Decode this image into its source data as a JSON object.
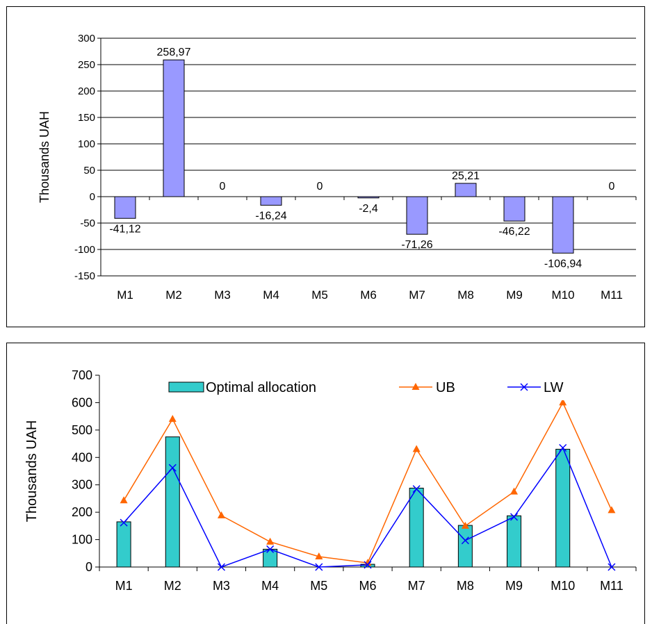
{
  "colors": {
    "bar_fill": "#9999ff",
    "bar_fill_teal": "#33cccc",
    "ub_line": "#ff6600",
    "lw_line": "#0000ff",
    "frame": "#000000"
  },
  "chart_data": [
    {
      "type": "bar",
      "categories": [
        "M1",
        "M2",
        "M3",
        "M4",
        "M5",
        "M6",
        "M7",
        "M8",
        "M9",
        "M10",
        "M11"
      ],
      "values": [
        -41.12,
        258.97,
        0,
        -16.24,
        0,
        -2.4,
        -71.26,
        25.21,
        -46.22,
        -106.94,
        0
      ],
      "data_labels": [
        "-41,12",
        "258,97",
        "0",
        "-16,24",
        "0",
        "-2,4",
        "-71,26",
        "25,21",
        "-46,22",
        "-106,94",
        "0"
      ],
      "ylabel": "Thousands UAH",
      "ylim": [
        -150,
        300
      ],
      "yticks": [
        "-150",
        "-100",
        "-50",
        "0",
        "50",
        "100",
        "150",
        "200",
        "250",
        "300"
      ],
      "grid": true
    },
    {
      "type": "bar",
      "categories": [
        "M1",
        "M2",
        "M3",
        "M4",
        "M5",
        "M6",
        "M7",
        "M8",
        "M9",
        "M10",
        "M11"
      ],
      "series": [
        {
          "name": "Optimal allocation",
          "type": "bar",
          "values": [
            165,
            475,
            0,
            65,
            0,
            10,
            288,
            152,
            187,
            430,
            0
          ]
        },
        {
          "name": "UB",
          "type": "line",
          "marker": "triangle",
          "values": [
            243,
            540,
            188,
            92,
            38,
            15,
            430,
            150,
            275,
            600,
            207
          ]
        },
        {
          "name": "LW",
          "type": "line",
          "marker": "x",
          "values": [
            162,
            362,
            0,
            65,
            0,
            8,
            285,
            97,
            183,
            435,
            0
          ]
        }
      ],
      "ylabel": "Thousands UAH",
      "ylim": [
        0,
        700
      ],
      "yticks": [
        "0",
        "100",
        "200",
        "300",
        "400",
        "500",
        "600",
        "700"
      ],
      "grid": false,
      "legend_position": "top"
    }
  ]
}
